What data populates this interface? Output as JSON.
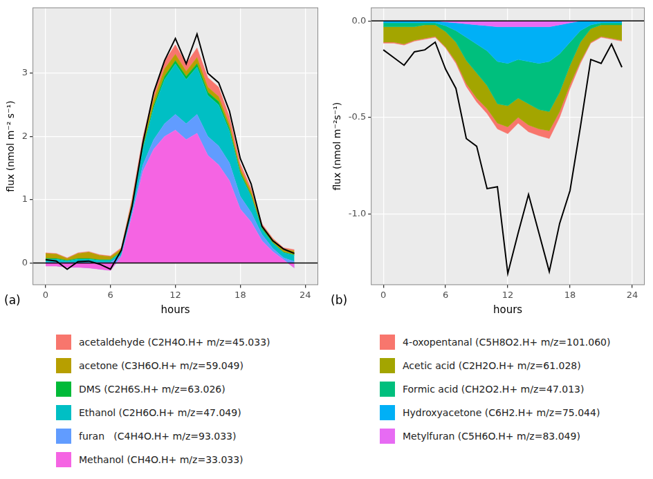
{
  "chart_data": [
    {
      "type": "area",
      "panel_label": "(a)",
      "x_label": "hours",
      "y_label": "flux (nmol m⁻² s⁻¹)",
      "x": [
        0,
        1,
        2,
        3,
        4,
        5,
        6,
        7,
        8,
        9,
        10,
        11,
        12,
        13,
        14,
        15,
        16,
        17,
        18,
        19,
        20,
        21,
        22,
        23
      ],
      "xlim": [
        -1.2,
        25.2
      ],
      "xticks": [
        0,
        6,
        12,
        18,
        24
      ],
      "ylim": [
        -0.35,
        4.04
      ],
      "yticks": [
        0,
        1,
        2,
        3
      ],
      "stacked": true,
      "grid": true,
      "legend": "bottom",
      "series": [
        {
          "name": "acetaldehyde (C2H4O.H+ m/z=45.033)",
          "type": "area",
          "color": "#F8766D",
          "values": [
            0.01,
            0.01,
            0.01,
            0.01,
            0.01,
            0.01,
            0.01,
            0.02,
            0.05,
            0.08,
            0.1,
            0.12,
            0.15,
            0.12,
            0.15,
            0.15,
            0.15,
            0.12,
            0.08,
            0.05,
            0.03,
            0.02,
            0.02,
            0.02
          ]
        },
        {
          "name": "acetone (C3H6O.H+ m/z=59.049)",
          "type": "area",
          "color": "#B79F00",
          "values": [
            0.08,
            0.07,
            0.03,
            0.08,
            0.1,
            0.07,
            0.05,
            0.04,
            0.05,
            0.08,
            0.1,
            0.12,
            0.1,
            0.08,
            0.1,
            0.08,
            0.08,
            0.07,
            0.06,
            0.06,
            0.04,
            0.05,
            0.05,
            0.06
          ]
        },
        {
          "name": "DMS (C2H6S.H+ m/z=63.026)",
          "type": "area",
          "color": "#00BA38",
          "values": [
            0.01,
            0.01,
            0.01,
            0.01,
            0.01,
            0.01,
            0.01,
            0.01,
            0.02,
            0.03,
            0.04,
            0.05,
            0.05,
            0.05,
            0.05,
            0.05,
            0.05,
            0.04,
            0.03,
            0.02,
            0.02,
            0.01,
            0.01,
            0.01
          ]
        },
        {
          "name": "Ethanol (C2H6O.H+ m/z=47.049)",
          "type": "area",
          "color": "#00BFC4",
          "values": [
            0.05,
            0.05,
            0.02,
            0.05,
            0.05,
            0.03,
            0.03,
            0.05,
            0.1,
            0.25,
            0.5,
            0.7,
            0.8,
            0.7,
            0.75,
            0.65,
            0.65,
            0.5,
            0.35,
            0.25,
            0.08,
            0.08,
            0.08,
            0.1
          ]
        },
        {
          "name": "furan   (C4H4O.H+ m/z=93.033)",
          "type": "area",
          "color": "#619CFF",
          "values": [
            0.01,
            0.01,
            0.01,
            0.01,
            0.01,
            0.01,
            0.01,
            0.02,
            0.05,
            0.1,
            0.15,
            0.2,
            0.25,
            0.25,
            0.3,
            0.3,
            0.3,
            0.28,
            0.2,
            0.15,
            0.1,
            0.05,
            0.03,
            0.02
          ]
        },
        {
          "name": "Methanol (CH4O.H+ m/z=33.033)",
          "type": "area",
          "color": "#F564E3",
          "values": [
            -0.05,
            -0.05,
            -0.07,
            -0.07,
            -0.08,
            -0.1,
            -0.12,
            0.1,
            0.75,
            1.45,
            1.8,
            2.0,
            2.1,
            1.95,
            2.05,
            1.7,
            1.55,
            1.3,
            0.85,
            0.65,
            0.35,
            0.18,
            0.05,
            -0.08
          ]
        },
        {
          "type": "line",
          "color": "#000000",
          "values": [
            0.05,
            0.03,
            -0.1,
            0.02,
            0.03,
            -0.02,
            -0.1,
            0.2,
            0.9,
            1.9,
            2.7,
            3.2,
            3.55,
            3.15,
            3.62,
            3.0,
            2.85,
            2.4,
            1.65,
            1.25,
            0.58,
            0.35,
            0.22,
            0.15
          ]
        }
      ]
    },
    {
      "type": "area",
      "panel_label": "(b)",
      "x_label": "hours",
      "y_label": "flux (nmol m⁻²s⁻¹)",
      "x": [
        0,
        1,
        2,
        3,
        4,
        5,
        6,
        7,
        8,
        9,
        10,
        11,
        12,
        13,
        14,
        15,
        16,
        17,
        18,
        19,
        20,
        21,
        22,
        23
      ],
      "xlim": [
        -1.2,
        25.2
      ],
      "xticks": [
        0,
        6,
        12,
        18,
        24
      ],
      "ylim": [
        -1.37,
        0.07
      ],
      "yticks": [
        {
          "value": -1,
          "label": "-1.0"
        },
        {
          "value": -0.5,
          "label": "-0.5"
        },
        {
          "value": 0,
          "label": "0.0"
        }
      ],
      "stacked": true,
      "grid": true,
      "legend": "bottom",
      "series": [
        {
          "name": "4-oxopentanal (C5H8O2.H+ m/z=101.060)",
          "type": "area",
          "color": "#F8766D",
          "values": [
            -0.005,
            -0.005,
            -0.005,
            -0.005,
            -0.005,
            -0.005,
            -0.005,
            -0.01,
            -0.015,
            -0.02,
            -0.025,
            -0.03,
            -0.035,
            -0.03,
            -0.035,
            -0.035,
            -0.04,
            -0.03,
            -0.02,
            -0.01,
            -0.005,
            -0.005,
            -0.005,
            -0.005
          ]
        },
        {
          "name": "Acetic acid (C2H2O.H+ m/z=61.028)",
          "type": "area",
          "color": "#A3A500",
          "values": [
            -0.08,
            -0.08,
            -0.09,
            -0.07,
            -0.07,
            -0.06,
            -0.08,
            -0.1,
            -0.12,
            -0.13,
            -0.12,
            -0.1,
            -0.11,
            -0.1,
            -0.11,
            -0.1,
            -0.1,
            -0.1,
            -0.1,
            -0.1,
            -0.07,
            -0.06,
            -0.07,
            -0.08
          ]
        },
        {
          "name": "Formic acid (CH2O2.H+ m/z=47.013)",
          "type": "area",
          "color": "#00BF7D",
          "values": [
            -0.02,
            -0.02,
            -0.02,
            -0.02,
            -0.01,
            -0.01,
            -0.03,
            -0.06,
            -0.12,
            -0.15,
            -0.18,
            -0.22,
            -0.22,
            -0.2,
            -0.22,
            -0.24,
            -0.26,
            -0.2,
            -0.12,
            -0.06,
            -0.02,
            -0.01,
            -0.01,
            -0.01
          ]
        },
        {
          "name": "Hydroxyacetone (C6H2.H+ m/z=75.044)",
          "type": "area",
          "color": "#00B0F6",
          "values": [
            -0.01,
            -0.01,
            -0.01,
            -0.01,
            -0.01,
            -0.01,
            -0.02,
            -0.04,
            -0.07,
            -0.1,
            -0.13,
            -0.18,
            -0.19,
            -0.17,
            -0.18,
            -0.19,
            -0.18,
            -0.15,
            -0.1,
            -0.05,
            -0.02,
            -0.01,
            -0.01,
            -0.01
          ]
        },
        {
          "name": "Metylfuran (C5H6O.H+ m/z=83.049)",
          "type": "area",
          "color": "#E76BF3",
          "values": [
            0,
            0,
            0,
            0,
            0,
            0,
            -0.005,
            -0.01,
            -0.015,
            -0.02,
            -0.025,
            -0.03,
            -0.03,
            -0.03,
            -0.03,
            -0.03,
            -0.03,
            -0.02,
            -0.01,
            0,
            0,
            0,
            0,
            0
          ]
        },
        {
          "type": "line",
          "color": "#000000",
          "values": [
            -0.15,
            -0.19,
            -0.23,
            -0.16,
            -0.15,
            -0.11,
            -0.25,
            -0.35,
            -0.61,
            -0.65,
            -0.87,
            -0.86,
            -1.31,
            -1.1,
            -0.9,
            -1.1,
            -1.3,
            -1.05,
            -0.88,
            -0.55,
            -0.2,
            -0.22,
            -0.12,
            -0.24
          ]
        }
      ]
    }
  ]
}
